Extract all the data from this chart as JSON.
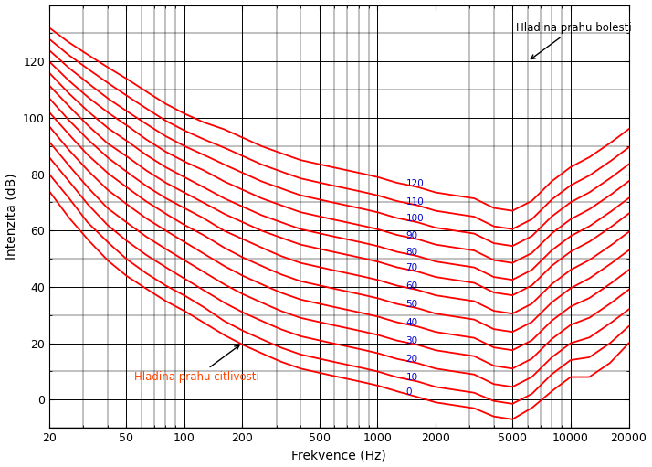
{
  "xlabel": "Frekvence (Hz)",
  "ylabel": "Intenzita (dB)",
  "xlim": [
    20,
    20000
  ],
  "ylim": [
    -10,
    140
  ],
  "phon_levels": [
    0,
    10,
    20,
    30,
    40,
    50,
    60,
    70,
    80,
    90,
    100,
    110,
    120
  ],
  "label_color": "#0000CC",
  "curve_color": "#FF0000",
  "annotation_pain": "Hladina prahu bolesti",
  "annotation_hearing": "Hladina prahu citlivosti",
  "hearing_annotation_color": "#FF4500",
  "grid_color": "#000000",
  "background_color": "#FFFFFF",
  "xticks": [
    20,
    50,
    100,
    200,
    500,
    1000,
    2000,
    5000,
    10000,
    20000
  ],
  "yticks": [
    0,
    20,
    40,
    60,
    80,
    100,
    120
  ],
  "freqs_key": [
    20,
    25,
    31.5,
    40,
    50,
    63,
    80,
    100,
    125,
    160,
    200,
    250,
    315,
    400,
    500,
    630,
    800,
    1000,
    1250,
    1600,
    2000,
    2500,
    3150,
    4000,
    5000,
    6300,
    8000,
    10000,
    12500,
    16000,
    20000
  ],
  "tables": {
    "0": [
      74,
      65,
      57,
      49.5,
      44,
      39.5,
      35,
      31.5,
      27.5,
      23,
      19.5,
      16.5,
      13.5,
      11,
      9.5,
      8,
      6.5,
      5,
      3,
      1,
      -1,
      -2,
      -3,
      -6,
      -7,
      -3,
      3,
      8,
      8,
      13,
      20
    ],
    "10": [
      80,
      72,
      63,
      56,
      50,
      45,
      40.5,
      37,
      33,
      28,
      24.5,
      21.5,
      18.5,
      16,
      14.5,
      13,
      11.5,
      10,
      8,
      6.5,
      4.5,
      3.5,
      2.5,
      -0.5,
      -1.5,
      2,
      9,
      14,
      15,
      20,
      26
    ],
    "20": [
      86,
      78,
      69.5,
      62,
      56.5,
      51.5,
      47,
      43,
      39,
      34.5,
      31,
      28,
      25,
      22.5,
      21,
      19.5,
      18,
      16.5,
      14.5,
      13,
      11,
      10,
      9,
      5.5,
      4.5,
      8,
      15,
      20,
      22,
      27,
      32
    ],
    "30": [
      91.5,
      83.5,
      75.5,
      68,
      63,
      58,
      53.5,
      49.5,
      45.5,
      41,
      37.5,
      34.5,
      31.5,
      29,
      27.5,
      26,
      24.5,
      23,
      21,
      19.5,
      17.5,
      16.5,
      15.5,
      12,
      11,
      14.5,
      21.5,
      26.5,
      29,
      34,
      39
    ],
    "40": [
      97,
      89,
      81.5,
      74.5,
      69.5,
      64.5,
      60,
      56,
      52,
      47.5,
      44,
      41,
      38,
      35.5,
      34,
      32.5,
      31,
      29.5,
      27.5,
      26,
      24,
      23,
      22,
      18.5,
      17.5,
      21,
      28,
      33,
      36,
      41,
      46
    ],
    "50": [
      102,
      94.5,
      87,
      80.5,
      75.5,
      70.5,
      66,
      62,
      58.5,
      54,
      50.5,
      47.5,
      44.5,
      42,
      40.5,
      39,
      37.5,
      36,
      34,
      32.5,
      30.5,
      29.5,
      28.5,
      25,
      24,
      27.5,
      34.5,
      39.5,
      43,
      48,
      53
    ],
    "60": [
      107,
      99.5,
      92.5,
      86,
      81,
      76,
      71.5,
      68,
      64.5,
      60,
      57,
      54,
      51,
      48.5,
      47,
      45.5,
      44,
      42.5,
      40.5,
      39,
      37,
      36,
      35,
      31.5,
      30.5,
      34,
      41,
      46,
      49.5,
      54.5,
      59.5
    ],
    "70": [
      111.5,
      104.5,
      97.5,
      91,
      86.5,
      81.5,
      77,
      73.5,
      70,
      66,
      63,
      60,
      57.5,
      55,
      53.5,
      52,
      50.5,
      49,
      47,
      45.5,
      43.5,
      42.5,
      41.5,
      38,
      37,
      40.5,
      47.5,
      52.5,
      56,
      61,
      66
    ],
    "80": [
      116,
      109,
      102.5,
      96.5,
      92,
      87,
      82.5,
      79,
      75.5,
      71.5,
      68.5,
      65.5,
      63,
      60.5,
      59,
      57.5,
      56,
      54.5,
      52.5,
      51,
      49,
      48,
      47,
      43.5,
      42.5,
      46,
      53,
      58,
      61.5,
      66.5,
      71.5
    ],
    "90": [
      120,
      113.5,
      107.5,
      102,
      97.5,
      92.5,
      88,
      84.5,
      81.5,
      77.5,
      74.5,
      71.5,
      69,
      66.5,
      65,
      63.5,
      62,
      60.5,
      58.5,
      57,
      55,
      54,
      53,
      49.5,
      48.5,
      52,
      59,
      64,
      67.5,
      72.5,
      77.5
    ],
    "100": [
      124,
      118,
      112.5,
      107,
      102.5,
      98,
      93.5,
      90,
      87,
      83.5,
      80.5,
      77.5,
      75,
      72.5,
      71,
      69.5,
      68,
      66.5,
      64.5,
      63,
      61,
      60,
      59,
      55.5,
      54.5,
      58,
      65,
      70,
      73.5,
      78.5,
      83.5
    ],
    "110": [
      128,
      122.5,
      117.5,
      112.5,
      108,
      103.5,
      99,
      95.5,
      92.5,
      89.5,
      86.5,
      83.5,
      81,
      78.5,
      77,
      75.5,
      74,
      72.5,
      70.5,
      69,
      67,
      66,
      65,
      61.5,
      60.5,
      64,
      71,
      76,
      79.5,
      84.5,
      89.5
    ],
    "120": [
      132,
      127,
      122.5,
      118,
      114,
      109.5,
      105,
      101.5,
      98.5,
      96,
      93,
      90,
      87.5,
      85,
      83.5,
      82,
      80.5,
      79,
      77,
      75.5,
      73.5,
      72.5,
      71.5,
      68,
      67,
      70.5,
      77.5,
      82.5,
      86,
      91,
      96
    ]
  }
}
